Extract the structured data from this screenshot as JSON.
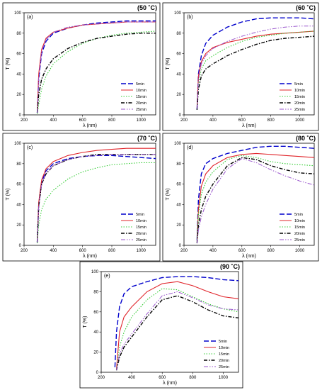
{
  "styles": {
    "5min": {
      "color": "#0000cc",
      "dash": "7,3",
      "width": 1.4
    },
    "10min": {
      "color": "#e0242a",
      "dash": "",
      "width": 1.1
    },
    "15min": {
      "color": "#33cc33",
      "dash": "1.5,2",
      "width": 1.1
    },
    "20min": {
      "color": "#000000",
      "dash": "5,2,1.5,2",
      "width": 1.4
    },
    "25min": {
      "color": "#9955cc",
      "dash": "6,2,1.5,2,1.5,2",
      "width": 1.0
    }
  },
  "chart_data": [
    {
      "type": "line",
      "panel_label": "(a)",
      "annotation": "(50 ˚C)",
      "xlabel": "λ (nm)",
      "ylabel": "T (%)",
      "xlim": [
        200,
        1100
      ],
      "ylim": [
        0,
        100
      ],
      "xticks": [
        200,
        400,
        600,
        800,
        1000
      ],
      "yticks": [
        0,
        20,
        40,
        60,
        80,
        100
      ],
      "legend": "bottom-right",
      "series": [
        {
          "name": "5min",
          "x": [
            290,
            300,
            320,
            350,
            400,
            500,
            600,
            700,
            800,
            900,
            1000,
            1100
          ],
          "y": [
            2,
            35,
            60,
            72,
            80,
            85,
            88,
            90,
            91,
            92,
            92,
            92
          ]
        },
        {
          "name": "10min",
          "x": [
            290,
            300,
            320,
            350,
            400,
            500,
            600,
            700,
            800,
            900,
            1000,
            1100
          ],
          "y": [
            3,
            40,
            64,
            75,
            81,
            85,
            88,
            89,
            90,
            91,
            91,
            91
          ]
        },
        {
          "name": "15min",
          "x": [
            290,
            300,
            320,
            350,
            400,
            500,
            600,
            700,
            800,
            900,
            1000,
            1100
          ],
          "y": [
            1,
            10,
            25,
            38,
            50,
            62,
            70,
            75,
            78,
            80,
            81,
            82
          ]
        },
        {
          "name": "20min",
          "x": [
            290,
            300,
            320,
            350,
            400,
            500,
            600,
            700,
            800,
            900,
            1000,
            1100
          ],
          "y": [
            2,
            20,
            35,
            45,
            55,
            65,
            71,
            75,
            77,
            79,
            80,
            80
          ]
        },
        {
          "name": "25min",
          "x": [
            290,
            300,
            320,
            350,
            400,
            500,
            600,
            700,
            800,
            900,
            1000,
            1100
          ],
          "y": [
            2,
            36,
            62,
            74,
            81,
            86,
            88,
            89,
            90,
            91,
            91,
            91
          ]
        }
      ]
    },
    {
      "type": "line",
      "panel_label": "(b)",
      "annotation": "(60 ˚C)",
      "xlabel": "λ (nm)",
      "ylabel": "T (%)",
      "xlim": [
        200,
        1100
      ],
      "ylim": [
        0,
        100
      ],
      "xticks": [
        200,
        400,
        600,
        800,
        1000
      ],
      "yticks": [
        0,
        20,
        40,
        60,
        80,
        100
      ],
      "legend": "bottom-right",
      "series": [
        {
          "name": "5min",
          "x": [
            290,
            300,
            320,
            350,
            400,
            500,
            600,
            700,
            800,
            900,
            1000,
            1100
          ],
          "y": [
            5,
            40,
            58,
            70,
            78,
            86,
            91,
            94,
            95,
            95,
            95,
            94
          ]
        },
        {
          "name": "10min",
          "x": [
            290,
            300,
            320,
            350,
            400,
            500,
            600,
            700,
            800,
            900,
            1000,
            1100
          ],
          "y": [
            8,
            38,
            52,
            60,
            66,
            71,
            74,
            77,
            79,
            80,
            81,
            82
          ]
        },
        {
          "name": "15min",
          "x": [
            290,
            300,
            320,
            350,
            400,
            500,
            600,
            700,
            800,
            900,
            1000,
            1100
          ],
          "y": [
            5,
            30,
            45,
            53,
            58,
            66,
            72,
            76,
            78,
            80,
            81,
            82
          ]
        },
        {
          "name": "20min",
          "x": [
            290,
            300,
            320,
            350,
            400,
            500,
            600,
            700,
            800,
            900,
            1000,
            1100
          ],
          "y": [
            5,
            25,
            38,
            45,
            50,
            58,
            64,
            69,
            73,
            75,
            76,
            77
          ]
        },
        {
          "name": "25min",
          "x": [
            290,
            300,
            320,
            350,
            400,
            500,
            600,
            700,
            800,
            900,
            1000,
            1100
          ],
          "y": [
            6,
            35,
            50,
            58,
            65,
            72,
            77,
            81,
            84,
            86,
            87,
            87
          ]
        }
      ]
    },
    {
      "type": "line",
      "panel_label": "(c)",
      "annotation": "(70 ˚C)",
      "xlabel": "λ (nm)",
      "ylabel": "T (%)",
      "xlim": [
        200,
        1100
      ],
      "ylim": [
        0,
        100
      ],
      "xticks": [
        200,
        400,
        600,
        800,
        1000
      ],
      "yticks": [
        0,
        20,
        40,
        60,
        80,
        100
      ],
      "legend": "bottom-right",
      "series": [
        {
          "name": "5min",
          "x": [
            290,
            300,
            320,
            350,
            400,
            500,
            600,
            700,
            800,
            900,
            1000,
            1100
          ],
          "y": [
            3,
            40,
            62,
            73,
            80,
            85,
            87,
            88,
            88,
            87,
            86,
            85
          ]
        },
        {
          "name": "10min",
          "x": [
            290,
            300,
            320,
            350,
            400,
            500,
            600,
            700,
            800,
            900,
            1000,
            1100
          ],
          "y": [
            4,
            42,
            64,
            75,
            82,
            88,
            91,
            93,
            94,
            95,
            95,
            95
          ]
        },
        {
          "name": "15min",
          "x": [
            290,
            300,
            320,
            350,
            400,
            500,
            600,
            700,
            800,
            900,
            1000,
            1100
          ],
          "y": [
            2,
            20,
            35,
            45,
            54,
            65,
            72,
            76,
            79,
            80,
            81,
            81
          ]
        },
        {
          "name": "20min",
          "x": [
            290,
            300,
            320,
            350,
            400,
            500,
            600,
            700,
            800,
            900,
            1000,
            1100
          ],
          "y": [
            3,
            38,
            60,
            70,
            78,
            84,
            87,
            89,
            89,
            89,
            89,
            89
          ]
        },
        {
          "name": "25min",
          "x": [
            290,
            300,
            320,
            350,
            400,
            500,
            600,
            700,
            800,
            900,
            1000,
            1100
          ],
          "y": [
            3,
            38,
            60,
            71,
            78,
            84,
            87,
            88,
            89,
            89,
            89,
            89
          ]
        }
      ]
    },
    {
      "type": "line",
      "panel_label": "(d)",
      "annotation": "(80 ˚C)",
      "xlabel": "λ (nm)",
      "ylabel": "T (%)",
      "xlim": [
        200,
        1100
      ],
      "ylim": [
        0,
        100
      ],
      "xticks": [
        200,
        400,
        600,
        800,
        1000
      ],
      "yticks": [
        0,
        20,
        40,
        60,
        80,
        100
      ],
      "legend": "bottom-right",
      "series": [
        {
          "name": "5min",
          "x": [
            290,
            300,
            320,
            350,
            400,
            500,
            600,
            700,
            800,
            900,
            1000,
            1100
          ],
          "y": [
            5,
            45,
            70,
            80,
            85,
            90,
            93,
            96,
            97,
            97,
            96,
            95
          ]
        },
        {
          "name": "10min",
          "x": [
            290,
            300,
            320,
            350,
            400,
            500,
            600,
            700,
            800,
            900,
            1000,
            1100
          ],
          "y": [
            4,
            35,
            58,
            70,
            78,
            86,
            89,
            90,
            89,
            88,
            87,
            86
          ]
        },
        {
          "name": "15min",
          "x": [
            290,
            300,
            320,
            350,
            400,
            500,
            600,
            700,
            800,
            900,
            1000,
            1100
          ],
          "y": [
            3,
            30,
            50,
            62,
            72,
            84,
            88,
            86,
            82,
            80,
            79,
            78
          ]
        },
        {
          "name": "20min",
          "x": [
            290,
            300,
            320,
            350,
            400,
            500,
            600,
            700,
            800,
            900,
            1000,
            1100
          ],
          "y": [
            2,
            20,
            35,
            48,
            60,
            78,
            86,
            84,
            78,
            74,
            71,
            70
          ]
        },
        {
          "name": "25min",
          "x": [
            290,
            300,
            320,
            350,
            400,
            500,
            600,
            700,
            800,
            900,
            1000,
            1100
          ],
          "y": [
            2,
            15,
            28,
            40,
            55,
            75,
            85,
            81,
            74,
            68,
            63,
            59
          ]
        }
      ]
    },
    {
      "type": "line",
      "panel_label": "(e)",
      "annotation": "(90 ˚C)",
      "xlabel": "λ (nm)",
      "ylabel": "T (%)",
      "xlim": [
        200,
        1100
      ],
      "ylim": [
        0,
        100
      ],
      "xticks": [
        200,
        400,
        600,
        800,
        1000
      ],
      "yticks": [
        0,
        20,
        40,
        60,
        80,
        100
      ],
      "legend": "bottom-right",
      "series": [
        {
          "name": "5min",
          "x": [
            290,
            300,
            320,
            350,
            400,
            500,
            600,
            700,
            800,
            900,
            1000,
            1100
          ],
          "y": [
            5,
            40,
            65,
            78,
            85,
            90,
            94,
            95,
            95,
            94,
            92,
            91
          ]
        },
        {
          "name": "10min",
          "x": [
            300,
            320,
            350,
            400,
            500,
            600,
            700,
            800,
            900,
            1000,
            1100
          ],
          "y": [
            3,
            40,
            55,
            65,
            80,
            88,
            90,
            86,
            80,
            75,
            73
          ]
        },
        {
          "name": "15min",
          "x": [
            300,
            320,
            350,
            400,
            500,
            600,
            700,
            800,
            900,
            1000,
            1100
          ],
          "y": [
            2,
            25,
            40,
            55,
            72,
            83,
            82,
            75,
            68,
            63,
            60
          ]
        },
        {
          "name": "20min",
          "x": [
            300,
            320,
            350,
            400,
            500,
            600,
            700,
            800,
            900,
            1000,
            1100
          ],
          "y": [
            2,
            15,
            25,
            35,
            55,
            72,
            76,
            70,
            62,
            56,
            54
          ]
        },
        {
          "name": "25min",
          "x": [
            300,
            320,
            350,
            400,
            500,
            600,
            700,
            800,
            900,
            1000,
            1100
          ],
          "y": [
            2,
            18,
            28,
            38,
            58,
            76,
            80,
            74,
            67,
            63,
            62
          ]
        }
      ]
    }
  ]
}
